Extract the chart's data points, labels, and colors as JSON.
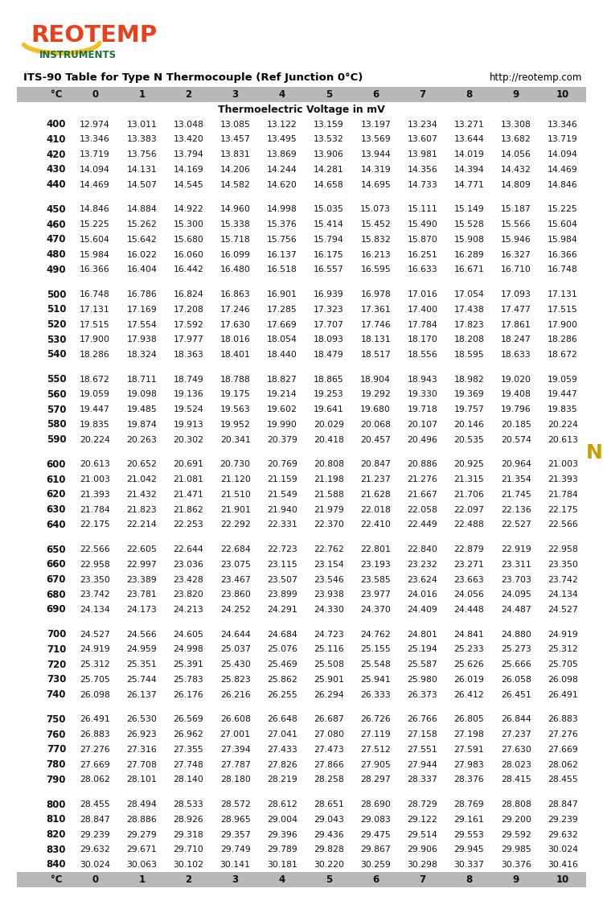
{
  "title": "ITS-90 Table for Type N Thermocouple (Ref Junction 0°C)",
  "url": "http://reotemp.com",
  "subtitle": "Thermoelectric Voltage in mV",
  "columns": [
    "°C",
    "0",
    "1",
    "2",
    "3",
    "4",
    "5",
    "6",
    "7",
    "8",
    "9",
    "10"
  ],
  "table_data": [
    [
      400,
      12.974,
      13.011,
      13.048,
      13.085,
      13.122,
      13.159,
      13.197,
      13.234,
      13.271,
      13.308,
      13.346
    ],
    [
      410,
      13.346,
      13.383,
      13.42,
      13.457,
      13.495,
      13.532,
      13.569,
      13.607,
      13.644,
      13.682,
      13.719
    ],
    [
      420,
      13.719,
      13.756,
      13.794,
      13.831,
      13.869,
      13.906,
      13.944,
      13.981,
      14.019,
      14.056,
      14.094
    ],
    [
      430,
      14.094,
      14.131,
      14.169,
      14.206,
      14.244,
      14.281,
      14.319,
      14.356,
      14.394,
      14.432,
      14.469
    ],
    [
      440,
      14.469,
      14.507,
      14.545,
      14.582,
      14.62,
      14.658,
      14.695,
      14.733,
      14.771,
      14.809,
      14.846
    ],
    [
      450,
      14.846,
      14.884,
      14.922,
      14.96,
      14.998,
      15.035,
      15.073,
      15.111,
      15.149,
      15.187,
      15.225
    ],
    [
      460,
      15.225,
      15.262,
      15.3,
      15.338,
      15.376,
      15.414,
      15.452,
      15.49,
      15.528,
      15.566,
      15.604
    ],
    [
      470,
      15.604,
      15.642,
      15.68,
      15.718,
      15.756,
      15.794,
      15.832,
      15.87,
      15.908,
      15.946,
      15.984
    ],
    [
      480,
      15.984,
      16.022,
      16.06,
      16.099,
      16.137,
      16.175,
      16.213,
      16.251,
      16.289,
      16.327,
      16.366
    ],
    [
      490,
      16.366,
      16.404,
      16.442,
      16.48,
      16.518,
      16.557,
      16.595,
      16.633,
      16.671,
      16.71,
      16.748
    ],
    [
      500,
      16.748,
      16.786,
      16.824,
      16.863,
      16.901,
      16.939,
      16.978,
      17.016,
      17.054,
      17.093,
      17.131
    ],
    [
      510,
      17.131,
      17.169,
      17.208,
      17.246,
      17.285,
      17.323,
      17.361,
      17.4,
      17.438,
      17.477,
      17.515
    ],
    [
      520,
      17.515,
      17.554,
      17.592,
      17.63,
      17.669,
      17.707,
      17.746,
      17.784,
      17.823,
      17.861,
      17.9
    ],
    [
      530,
      17.9,
      17.938,
      17.977,
      18.016,
      18.054,
      18.093,
      18.131,
      18.17,
      18.208,
      18.247,
      18.286
    ],
    [
      540,
      18.286,
      18.324,
      18.363,
      18.401,
      18.44,
      18.479,
      18.517,
      18.556,
      18.595,
      18.633,
      18.672
    ],
    [
      550,
      18.672,
      18.711,
      18.749,
      18.788,
      18.827,
      18.865,
      18.904,
      18.943,
      18.982,
      19.02,
      19.059
    ],
    [
      560,
      19.059,
      19.098,
      19.136,
      19.175,
      19.214,
      19.253,
      19.292,
      19.33,
      19.369,
      19.408,
      19.447
    ],
    [
      570,
      19.447,
      19.485,
      19.524,
      19.563,
      19.602,
      19.641,
      19.68,
      19.718,
      19.757,
      19.796,
      19.835
    ],
    [
      580,
      19.835,
      19.874,
      19.913,
      19.952,
      19.99,
      20.029,
      20.068,
      20.107,
      20.146,
      20.185,
      20.224
    ],
    [
      590,
      20.224,
      20.263,
      20.302,
      20.341,
      20.379,
      20.418,
      20.457,
      20.496,
      20.535,
      20.574,
      20.613
    ],
    [
      600,
      20.613,
      20.652,
      20.691,
      20.73,
      20.769,
      20.808,
      20.847,
      20.886,
      20.925,
      20.964,
      21.003
    ],
    [
      610,
      21.003,
      21.042,
      21.081,
      21.12,
      21.159,
      21.198,
      21.237,
      21.276,
      21.315,
      21.354,
      21.393
    ],
    [
      620,
      21.393,
      21.432,
      21.471,
      21.51,
      21.549,
      21.588,
      21.628,
      21.667,
      21.706,
      21.745,
      21.784
    ],
    [
      630,
      21.784,
      21.823,
      21.862,
      21.901,
      21.94,
      21.979,
      22.018,
      22.058,
      22.097,
      22.136,
      22.175
    ],
    [
      640,
      22.175,
      22.214,
      22.253,
      22.292,
      22.331,
      22.37,
      22.41,
      22.449,
      22.488,
      22.527,
      22.566
    ],
    [
      650,
      22.566,
      22.605,
      22.644,
      22.684,
      22.723,
      22.762,
      22.801,
      22.84,
      22.879,
      22.919,
      22.958
    ],
    [
      660,
      22.958,
      22.997,
      23.036,
      23.075,
      23.115,
      23.154,
      23.193,
      23.232,
      23.271,
      23.311,
      23.35
    ],
    [
      670,
      23.35,
      23.389,
      23.428,
      23.467,
      23.507,
      23.546,
      23.585,
      23.624,
      23.663,
      23.703,
      23.742
    ],
    [
      680,
      23.742,
      23.781,
      23.82,
      23.86,
      23.899,
      23.938,
      23.977,
      24.016,
      24.056,
      24.095,
      24.134
    ],
    [
      690,
      24.134,
      24.173,
      24.213,
      24.252,
      24.291,
      24.33,
      24.37,
      24.409,
      24.448,
      24.487,
      24.527
    ],
    [
      700,
      24.527,
      24.566,
      24.605,
      24.644,
      24.684,
      24.723,
      24.762,
      24.801,
      24.841,
      24.88,
      24.919
    ],
    [
      710,
      24.919,
      24.959,
      24.998,
      25.037,
      25.076,
      25.116,
      25.155,
      25.194,
      25.233,
      25.273,
      25.312
    ],
    [
      720,
      25.312,
      25.351,
      25.391,
      25.43,
      25.469,
      25.508,
      25.548,
      25.587,
      25.626,
      25.666,
      25.705
    ],
    [
      730,
      25.705,
      25.744,
      25.783,
      25.823,
      25.862,
      25.901,
      25.941,
      25.98,
      26.019,
      26.058,
      26.098
    ],
    [
      740,
      26.098,
      26.137,
      26.176,
      26.216,
      26.255,
      26.294,
      26.333,
      26.373,
      26.412,
      26.451,
      26.491
    ],
    [
      750,
      26.491,
      26.53,
      26.569,
      26.608,
      26.648,
      26.687,
      26.726,
      26.766,
      26.805,
      26.844,
      26.883
    ],
    [
      760,
      26.883,
      26.923,
      26.962,
      27.001,
      27.041,
      27.08,
      27.119,
      27.158,
      27.198,
      27.237,
      27.276
    ],
    [
      770,
      27.276,
      27.316,
      27.355,
      27.394,
      27.433,
      27.473,
      27.512,
      27.551,
      27.591,
      27.63,
      27.669
    ],
    [
      780,
      27.669,
      27.708,
      27.748,
      27.787,
      27.826,
      27.866,
      27.905,
      27.944,
      27.983,
      28.023,
      28.062
    ],
    [
      790,
      28.062,
      28.101,
      28.14,
      28.18,
      28.219,
      28.258,
      28.297,
      28.337,
      28.376,
      28.415,
      28.455
    ],
    [
      800,
      28.455,
      28.494,
      28.533,
      28.572,
      28.612,
      28.651,
      28.69,
      28.729,
      28.769,
      28.808,
      28.847
    ],
    [
      810,
      28.847,
      28.886,
      28.926,
      28.965,
      29.004,
      29.043,
      29.083,
      29.122,
      29.161,
      29.2,
      29.239
    ],
    [
      820,
      29.239,
      29.279,
      29.318,
      29.357,
      29.396,
      29.436,
      29.475,
      29.514,
      29.553,
      29.592,
      29.632
    ],
    [
      830,
      29.632,
      29.671,
      29.71,
      29.749,
      29.789,
      29.828,
      29.867,
      29.906,
      29.945,
      29.985,
      30.024
    ],
    [
      840,
      30.024,
      30.063,
      30.102,
      30.141,
      30.181,
      30.22,
      30.259,
      30.298,
      30.337,
      30.376,
      30.416
    ]
  ],
  "left_bar_color": "#3d9b5f",
  "right_bar_color": "#e8c840",
  "logo_yellow": "#f0c020",
  "logo_red_text": "#e8401c",
  "instruments_color": "#1a6e3c",
  "header_bg": "#b8b8b8",
  "n_left_color": "#ffffff",
  "n_right_color": "#c8a000"
}
